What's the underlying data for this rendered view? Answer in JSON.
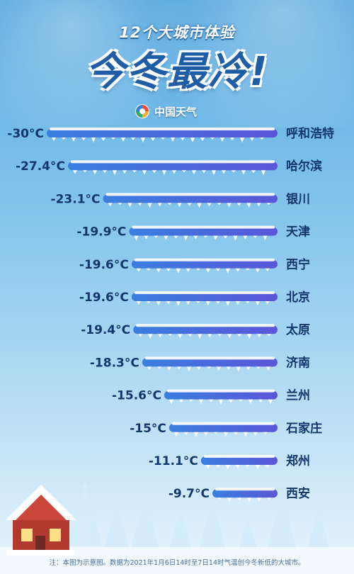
{
  "header": {
    "subtitle": "12个大城市体验",
    "headline": "今冬最冷!",
    "brand": "中国天气"
  },
  "colors": {
    "bar_start": "#3a7fe0",
    "bar_end": "#5a55d8",
    "label": "#12376b"
  },
  "footnote": "注：本图为示意图。数据为2021年1月6日14时至7日14时气温创今冬新低的大城市。",
  "chart_data": {
    "type": "bar",
    "orientation": "horizontal",
    "unit": "°C",
    "categories": [
      "呼和浩特",
      "哈尔滨",
      "银川",
      "天津",
      "西宁",
      "北京",
      "太原",
      "济南",
      "兰州",
      "石家庄",
      "郑州",
      "西安"
    ],
    "values": [
      -30,
      -27.4,
      -23.1,
      -19.9,
      -19.6,
      -19.6,
      -19.4,
      -18.3,
      -15.6,
      -15,
      -11.1,
      -9.7
    ],
    "value_labels": [
      "-30°C",
      "-27.4°C",
      "-23.1°C",
      "-19.9°C",
      "-19.6°C",
      "-19.6°C",
      "-19.4°C",
      "-18.3°C",
      "-15.6°C",
      "-15°C",
      "-11.1°C",
      "-9.7°C"
    ],
    "title": "",
    "xlabel": "",
    "ylabel": ""
  }
}
